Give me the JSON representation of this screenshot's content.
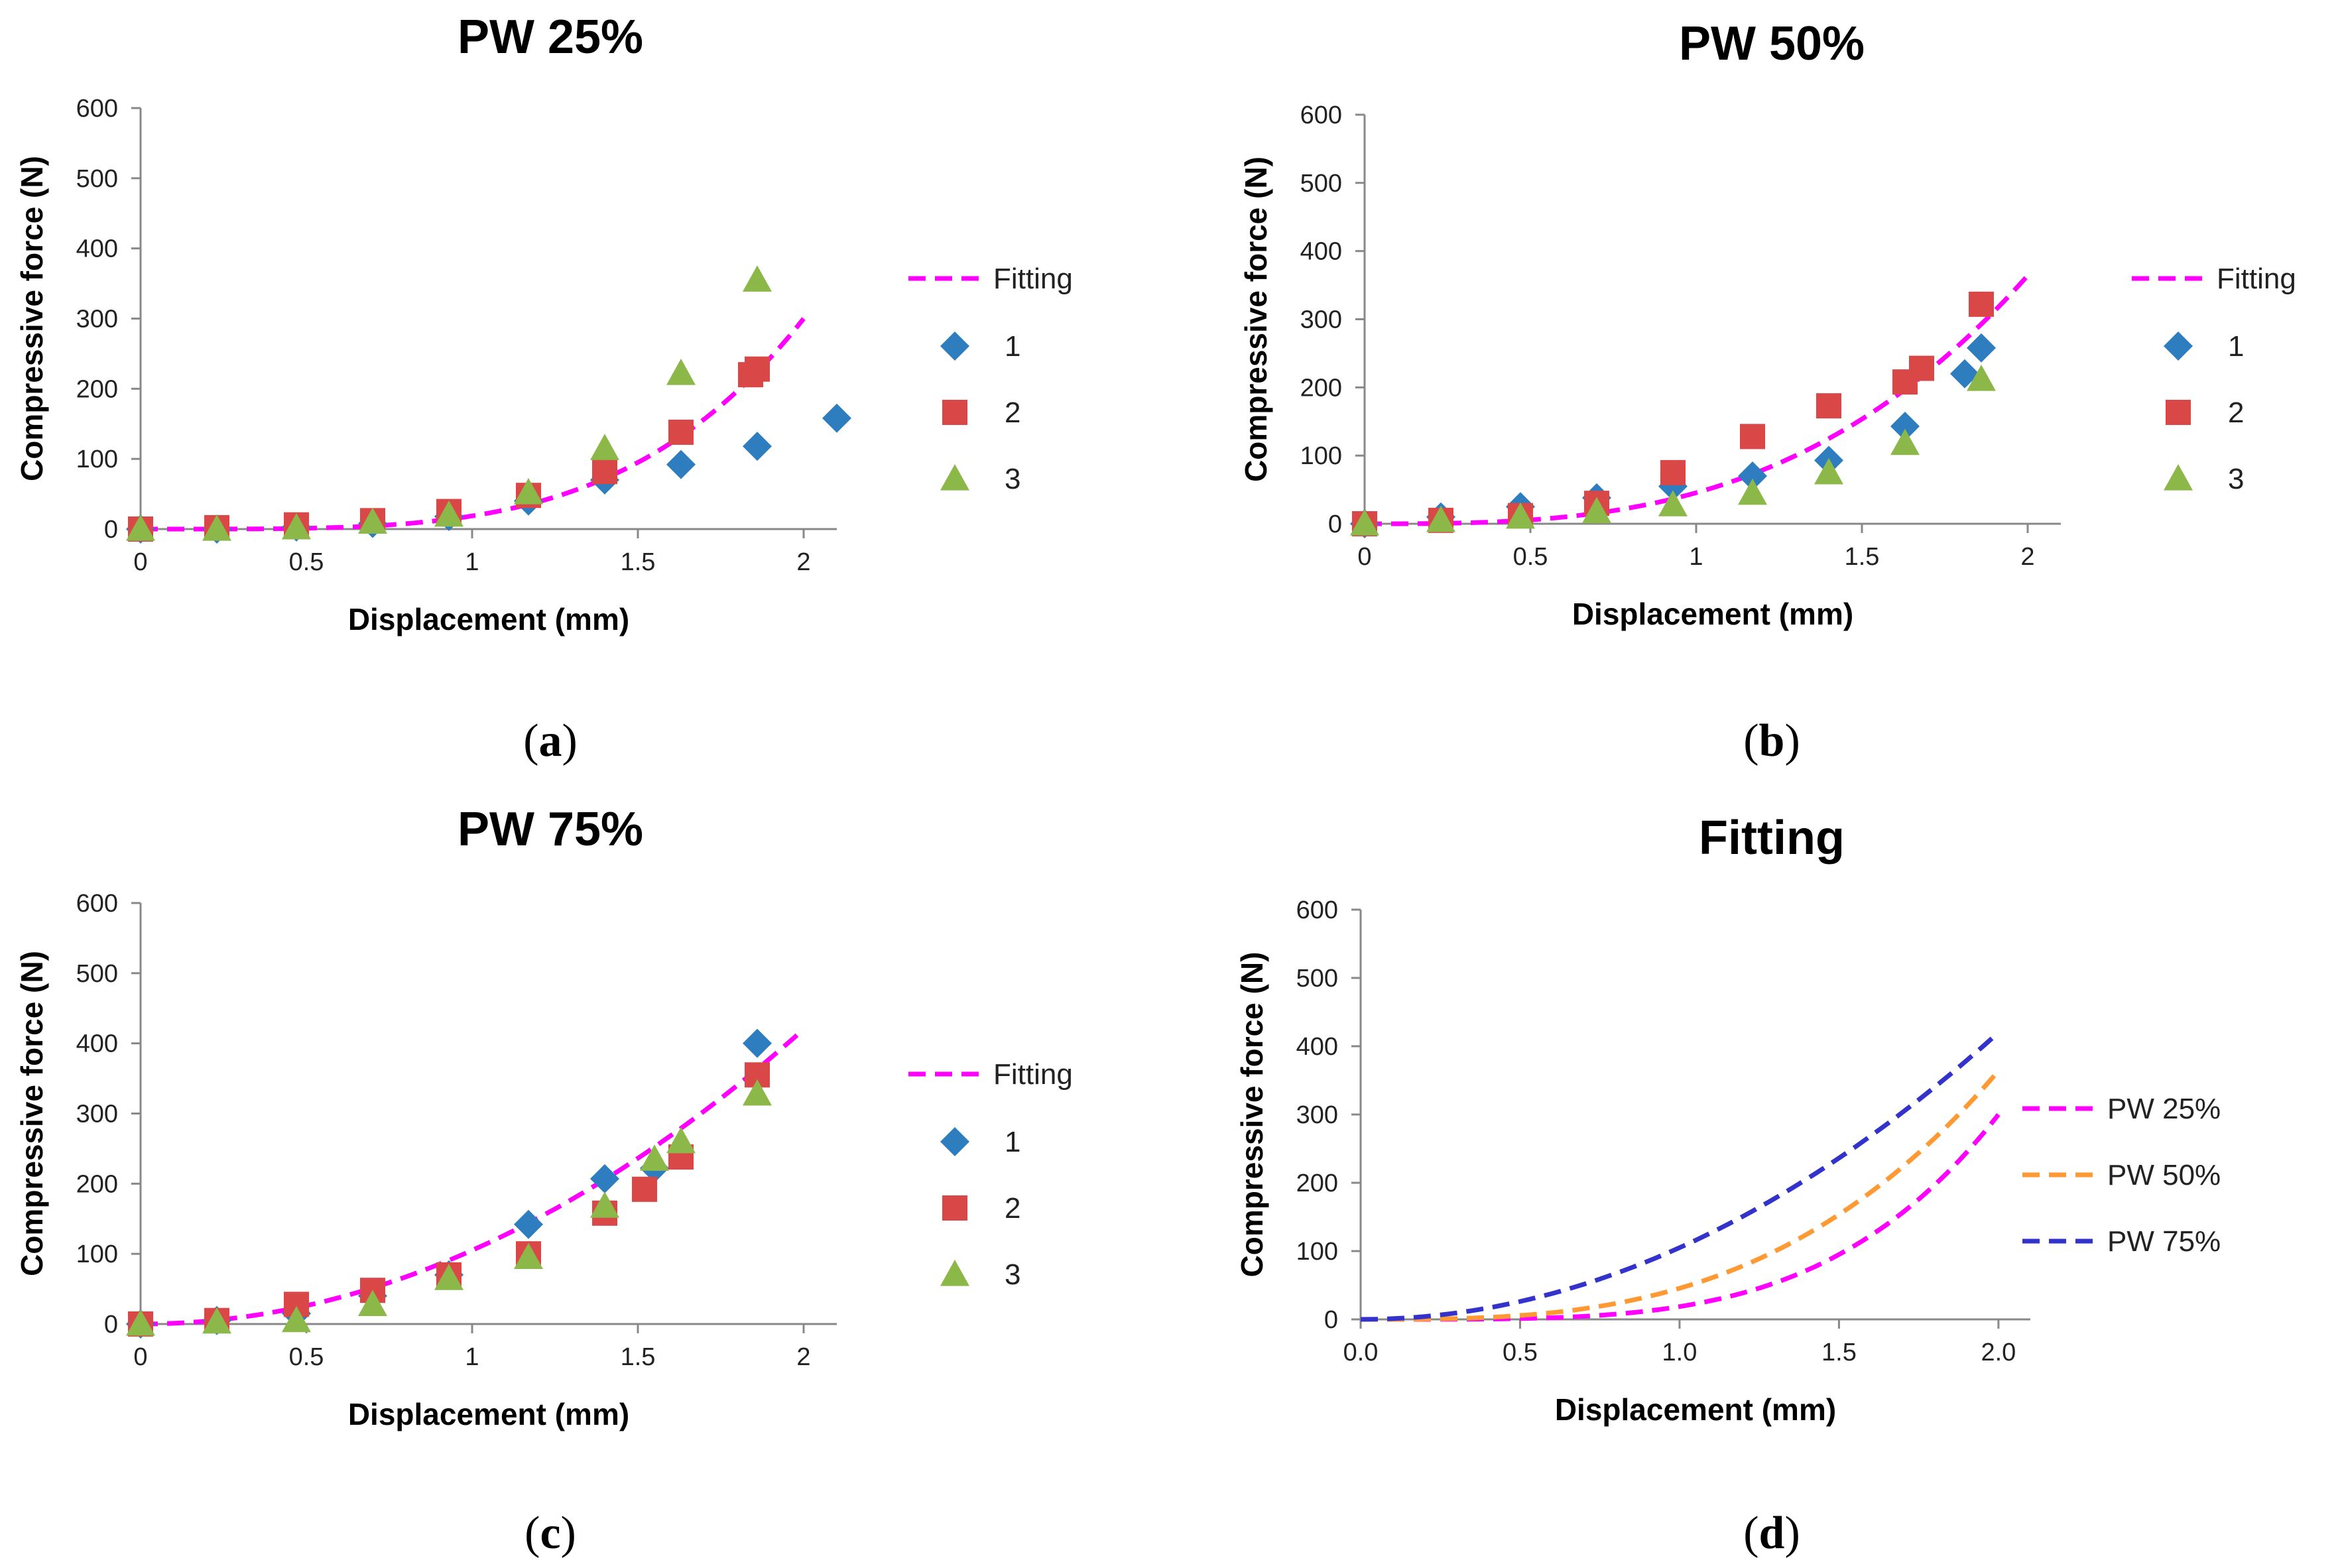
{
  "colors": {
    "series1": "#2e7ebf",
    "series2": "#d94747",
    "series3": "#8cb84a",
    "fit_magenta": "#ff00ff",
    "fit_orange": "#ff9933",
    "fit_blue": "#3333cc"
  },
  "chart_data": [
    {
      "type": "scatter",
      "panel": "a",
      "caption": "(a)",
      "caption_letter": "a",
      "title": "PW 25%",
      "xlabel": "Displacement (mm)",
      "ylabel": "Compressive force (N)",
      "xlim": [
        0,
        2.1
      ],
      "ylim": [
        0,
        600
      ],
      "xticks": [
        0,
        0.5,
        1,
        1.5,
        2
      ],
      "xtick_labels": [
        "0",
        "0.5",
        "1",
        "1.5",
        "2"
      ],
      "yticks": [
        0,
        100,
        200,
        300,
        400,
        500,
        600
      ],
      "ytick_labels": [
        "0",
        "100",
        "200",
        "300",
        "400",
        "500",
        "600"
      ],
      "fit": {
        "name": "Fitting",
        "a": 18.75,
        "p": 4,
        "xmax": 2.0,
        "color_key": "fit_magenta"
      },
      "series": [
        {
          "name": "1",
          "marker": "diamond",
          "color_key": "series1",
          "x": [
            0,
            0.23,
            0.47,
            0.7,
            0.93,
            1.17,
            1.4,
            1.63,
            1.86,
            2.1
          ],
          "y": [
            0,
            0,
            3,
            8,
            18,
            40,
            70,
            92,
            118,
            158
          ]
        },
        {
          "name": "2",
          "marker": "square",
          "color_key": "series2",
          "x": [
            0,
            0.23,
            0.47,
            0.7,
            0.93,
            1.17,
            1.4,
            1.63,
            1.84,
            1.86
          ],
          "y": [
            0,
            2,
            6,
            12,
            25,
            48,
            82,
            138,
            220,
            228
          ]
        },
        {
          "name": "3",
          "marker": "triangle",
          "color_key": "series3",
          "x": [
            0,
            0.23,
            0.47,
            0.7,
            0.93,
            1.17,
            1.4,
            1.63,
            1.86
          ],
          "y": [
            0,
            0,
            2,
            10,
            20,
            52,
            115,
            222,
            355
          ]
        }
      ]
    },
    {
      "type": "scatter",
      "panel": "b",
      "caption": "(b)",
      "caption_letter": "b",
      "title": "PW 50%",
      "xlabel": "Displacement (mm)",
      "ylabel": "Compressive force (N)",
      "xlim": [
        0,
        2.1
      ],
      "ylim": [
        0,
        600
      ],
      "xticks": [
        0,
        0.5,
        1,
        1.5,
        2
      ],
      "xtick_labels": [
        "0",
        "0.5",
        "1",
        "1.5",
        "2"
      ],
      "yticks": [
        0,
        100,
        200,
        300,
        400,
        500,
        600
      ],
      "ytick_labels": [
        "0",
        "100",
        "200",
        "300",
        "400",
        "500",
        "600"
      ],
      "fit": {
        "name": "Fitting",
        "a": 45.5,
        "p": 3,
        "xmax": 2.0,
        "color_key": "fit_magenta"
      },
      "series": [
        {
          "name": "1",
          "marker": "diamond",
          "color_key": "series1",
          "x": [
            0,
            0.23,
            0.47,
            0.7,
            0.93,
            1.17,
            1.4,
            1.63,
            1.81,
            1.86
          ],
          "y": [
            0,
            10,
            25,
            38,
            55,
            70,
            93,
            143,
            220,
            258
          ]
        },
        {
          "name": "2",
          "marker": "square",
          "color_key": "series2",
          "x": [
            0,
            0.23,
            0.47,
            0.7,
            0.93,
            1.17,
            1.4,
            1.63,
            1.68,
            1.86
          ],
          "y": [
            0,
            5,
            12,
            30,
            75,
            128,
            173,
            208,
            228,
            322
          ]
        },
        {
          "name": "3",
          "marker": "triangle",
          "color_key": "series3",
          "x": [
            0,
            0.23,
            0.47,
            0.7,
            0.93,
            1.17,
            1.4,
            1.63,
            1.86
          ],
          "y": [
            0,
            5,
            10,
            18,
            28,
            45,
            75,
            118,
            212
          ]
        }
      ]
    },
    {
      "type": "scatter",
      "panel": "c",
      "caption": "(c)",
      "caption_letter": "c",
      "title": "PW 75%",
      "xlabel": "Displacement (mm)",
      "ylabel": "Compressive force (N)",
      "xlim": [
        0,
        2.1
      ],
      "ylim": [
        0,
        600
      ],
      "xticks": [
        0,
        0.5,
        1,
        1.5,
        2
      ],
      "xtick_labels": [
        "0",
        "0.5",
        "1",
        "1.5",
        "2"
      ],
      "yticks": [
        0,
        100,
        200,
        300,
        400,
        500,
        600
      ],
      "ytick_labels": [
        "0",
        "100",
        "200",
        "300",
        "400",
        "500",
        "600"
      ],
      "fit": {
        "name": "Fitting",
        "a": 105,
        "p": 2,
        "xmax": 2.0,
        "color_key": "fit_magenta"
      },
      "series": [
        {
          "name": "1",
          "marker": "diamond",
          "color_key": "series1",
          "x": [
            0,
            0.23,
            0.47,
            0.7,
            0.93,
            1.17,
            1.4,
            1.55,
            1.86
          ],
          "y": [
            0,
            5,
            15,
            40,
            70,
            142,
            207,
            222,
            400
          ]
        },
        {
          "name": "2",
          "marker": "square",
          "color_key": "series2",
          "x": [
            0,
            0.23,
            0.47,
            0.7,
            0.93,
            1.17,
            1.4,
            1.52,
            1.63,
            1.86
          ],
          "y": [
            0,
            5,
            28,
            48,
            70,
            100,
            158,
            192,
            238,
            355
          ]
        },
        {
          "name": "3",
          "marker": "triangle",
          "color_key": "series3",
          "x": [
            0,
            0.23,
            0.47,
            0.7,
            0.93,
            1.17,
            1.4,
            1.55,
            1.63,
            1.86
          ],
          "y": [
            0,
            3,
            5,
            28,
            65,
            95,
            168,
            235,
            260,
            328
          ]
        }
      ]
    },
    {
      "type": "line",
      "panel": "d",
      "caption": "(d)",
      "caption_letter": "d",
      "title": "Fitting",
      "xlabel": "Displacement (mm)",
      "ylabel": "Compressive force (N)",
      "xlim": [
        0,
        2.1
      ],
      "ylim": [
        0,
        600
      ],
      "xticks": [
        0,
        0.5,
        1,
        1.5,
        2
      ],
      "xtick_labels": [
        "0.0",
        "0.5",
        "1.0",
        "1.5",
        "2.0"
      ],
      "yticks": [
        0,
        100,
        200,
        300,
        400,
        500,
        600
      ],
      "ytick_labels": [
        "0",
        "100",
        "200",
        "300",
        "400",
        "500",
        "600"
      ],
      "lines": [
        {
          "name": "PW 25%",
          "a": 18.75,
          "p": 4,
          "xmax": 2.0,
          "color_key": "fit_magenta"
        },
        {
          "name": "PW 50%",
          "a": 45.5,
          "p": 3,
          "xmax": 2.0,
          "color_key": "fit_orange"
        },
        {
          "name": "PW 75%",
          "a": 105,
          "p": 2,
          "xmax": 2.0,
          "color_key": "fit_blue"
        }
      ]
    }
  ]
}
